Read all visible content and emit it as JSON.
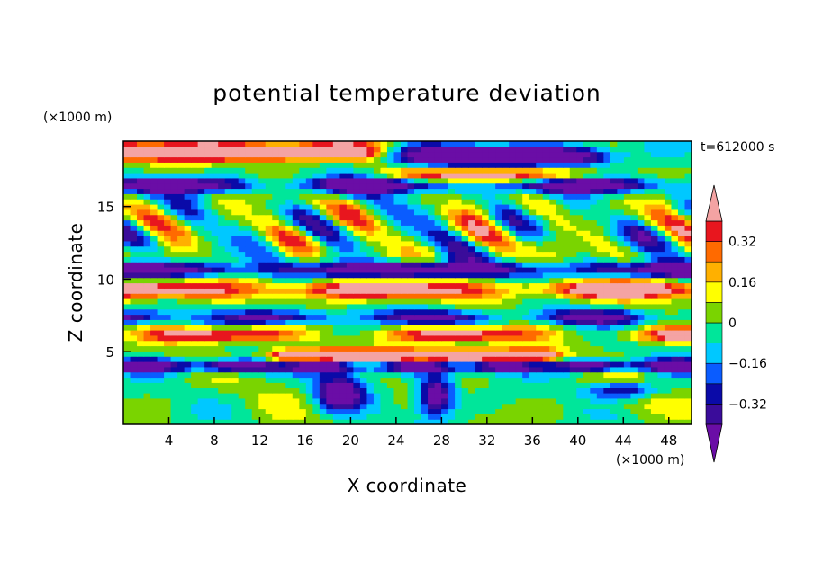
{
  "chart_data": {
    "type": "heatmap",
    "title": "potential temperature deviation",
    "xlabel": "X coordinate",
    "ylabel": "Z coordinate",
    "x_unit": "(×1000 m)",
    "y_unit": "(×1000 m)",
    "time_label": "t=612000 s",
    "xlim": [
      0,
      50
    ],
    "ylim": [
      0,
      19.5
    ],
    "x_ticks": [
      4,
      8,
      12,
      16,
      20,
      24,
      28,
      32,
      36,
      40,
      44,
      48
    ],
    "y_ticks": [
      5,
      10,
      15
    ],
    "colorbar": {
      "levels": [
        -0.4,
        -0.32,
        -0.24,
        -0.16,
        -0.08,
        0,
        0.08,
        0.16,
        0.24,
        0.32,
        0.4
      ],
      "tick_values": [
        0.32,
        0.16,
        0,
        -0.16,
        -0.32
      ],
      "tick_labels": [
        "0.32",
        "0.16",
        "0",
        "−0.16",
        "−0.32"
      ],
      "over_color": "#f4a3a3",
      "under_color": "#6a0da6",
      "colors": [
        "#3a0c9a",
        "#0a0aa8",
        "#0a5cff",
        "#00c8ff",
        "#00e69a",
        "#7ad400",
        "#ffff00",
        "#ffb000",
        "#ff6a00",
        "#e8161e"
      ]
    },
    "bands": [
      {
        "z_range": [
          0,
          3.5
        ],
        "description": "lower layer",
        "dominant_values": [
          0.05,
          -0.05
        ]
      },
      {
        "z_range": [
          3.5,
          4.6
        ],
        "description": "cold band",
        "dominant_values": [
          -0.45
        ]
      },
      {
        "z_range": [
          4.3,
          5.3
        ],
        "description": "warm plume tops x=13-38",
        "dominant_values": [
          0.45
        ]
      },
      {
        "z_range": [
          5.3,
          8.0
        ],
        "description": "mixed",
        "dominant_values": [
          0.2,
          -0.3
        ]
      },
      {
        "z_range": [
          8.0,
          10.0
        ],
        "description": "warm band",
        "dominant_values": [
          0.45
        ]
      },
      {
        "z_range": [
          10.0,
          11.5
        ],
        "description": "cold band",
        "dominant_values": [
          -0.45
        ]
      },
      {
        "z_range": [
          11.5,
          17.0
        ],
        "description": "mixed",
        "dominant_values": [
          0.3,
          -0.3
        ]
      },
      {
        "z_range": [
          16.0,
          17.5
        ],
        "description": "cold band",
        "dominant_values": [
          -0.45
        ]
      },
      {
        "z_range": [
          17.0,
          19.5
        ],
        "description": "warm/cold top",
        "dominant_values": [
          0.45,
          -0.45
        ]
      }
    ]
  }
}
